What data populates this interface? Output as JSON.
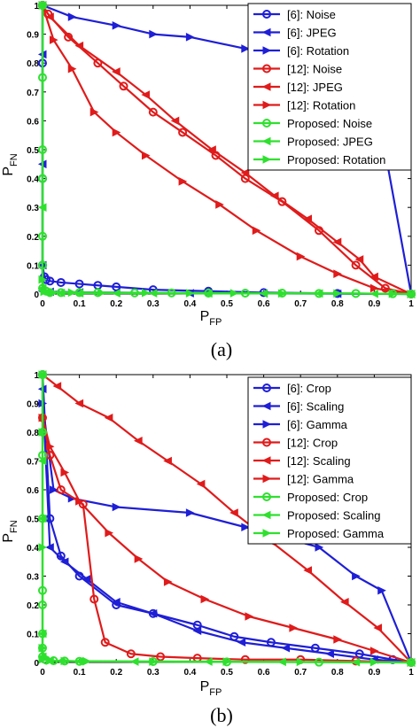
{
  "colors": {
    "ref6": "#1f1fd6",
    "ref12": "#e01b1b",
    "proposed": "#2fe02f",
    "axis": "#000000",
    "background": "#ffffff"
  },
  "chart_data": [
    {
      "type": "line",
      "caption": "(a)",
      "xlabel": "P",
      "xlabel_sub": "FP",
      "ylabel": "P",
      "ylabel_sub": "FN",
      "xlim": [
        0,
        1
      ],
      "ylim": [
        0,
        1
      ],
      "xticks": [
        "0",
        "0.1",
        "0.2",
        "0.3",
        "0.4",
        "0.5",
        "0.6",
        "0.7",
        "0.8",
        "0.9",
        "1"
      ],
      "yticks": [
        "0",
        "0.1",
        "0.2",
        "0.3",
        "0.4",
        "0.5",
        "0.6",
        "0.7",
        "0.8",
        "0.9",
        "1"
      ],
      "grid": false,
      "legend_position": "top-right",
      "series": [
        {
          "name": "[6]: Noise",
          "color": "ref6",
          "marker": "circle",
          "x": [
            0,
            0,
            0,
            0,
            0.005,
            0.01,
            0.02,
            0.05,
            0.1,
            0.15,
            0.2,
            0.3,
            0.45,
            0.6,
            0.8,
            1.0
          ],
          "y": [
            1.0,
            0.8,
            0.4,
            0.1,
            0.06,
            0.05,
            0.045,
            0.04,
            0.035,
            0.03,
            0.025,
            0.015,
            0.01,
            0.005,
            0.002,
            0
          ]
        },
        {
          "name": "[6]: JPEG",
          "color": "ref6",
          "marker": "triangle-left",
          "x": [
            0,
            0,
            0,
            0,
            0,
            0.02,
            0.1,
            0.2,
            0.4,
            0.6,
            0.8,
            1.0
          ],
          "y": [
            1.0,
            0.83,
            0.45,
            0.1,
            0.01,
            0.008,
            0.006,
            0.005,
            0.003,
            0.002,
            0.001,
            0
          ]
        },
        {
          "name": "[6]: Rotation",
          "color": "ref6",
          "marker": "triangle-right",
          "x": [
            0,
            0.08,
            0.2,
            0.3,
            0.4,
            0.55,
            0.7,
            0.85,
            0.9,
            1.0
          ],
          "y": [
            1.0,
            0.96,
            0.93,
            0.9,
            0.89,
            0.85,
            0.8,
            0.75,
            0.7,
            0
          ]
        },
        {
          "name": "[12]: Noise",
          "color": "ref12",
          "marker": "circle",
          "x": [
            0,
            0.015,
            0.07,
            0.15,
            0.22,
            0.3,
            0.38,
            0.47,
            0.55,
            0.65,
            0.75,
            0.85,
            0.93,
            1.0
          ],
          "y": [
            1.0,
            0.97,
            0.89,
            0.8,
            0.72,
            0.63,
            0.56,
            0.48,
            0.4,
            0.32,
            0.22,
            0.1,
            0.02,
            0
          ]
        },
        {
          "name": "[12]: JPEG",
          "color": "ref12",
          "marker": "triangle-left",
          "x": [
            0,
            0.02,
            0.1,
            0.2,
            0.28,
            0.36,
            0.46,
            0.55,
            0.63,
            0.72,
            0.8,
            0.86,
            0.9,
            1.0
          ],
          "y": [
            1.0,
            0.96,
            0.86,
            0.77,
            0.69,
            0.6,
            0.5,
            0.42,
            0.34,
            0.26,
            0.18,
            0.12,
            0.06,
            0
          ]
        },
        {
          "name": "[12]: Rotation",
          "color": "ref12",
          "marker": "triangle-right",
          "x": [
            0,
            0.03,
            0.08,
            0.14,
            0.2,
            0.28,
            0.38,
            0.48,
            0.58,
            0.7,
            0.8,
            0.9,
            1.0
          ],
          "y": [
            1.0,
            0.88,
            0.78,
            0.63,
            0.56,
            0.48,
            0.39,
            0.31,
            0.22,
            0.13,
            0.07,
            0.02,
            0
          ]
        },
        {
          "name": "Proposed: Noise",
          "color": "proposed",
          "marker": "circle",
          "x": [
            0,
            0,
            0,
            0,
            0,
            0,
            0,
            0.01,
            0.02,
            0.05,
            0.1,
            0.15,
            0.25,
            0.35,
            0.45,
            0.55,
            0.65,
            0.75,
            0.85,
            0.95,
            1.0
          ],
          "y": [
            1.0,
            0.75,
            0.5,
            0.4,
            0.2,
            0.1,
            0.02,
            0.01,
            0.005,
            0.005,
            0.005,
            0.005,
            0.004,
            0.004,
            0.003,
            0.003,
            0.003,
            0.002,
            0.002,
            0.001,
            0
          ]
        },
        {
          "name": "Proposed: JPEG",
          "color": "proposed",
          "marker": "triangle-left",
          "x": [
            0,
            0,
            0,
            0.01,
            0.05,
            0.1,
            0.2,
            0.3,
            0.45,
            0.6,
            0.75,
            0.9,
            1.0
          ],
          "y": [
            1.0,
            0.3,
            0.02,
            0.004,
            0.004,
            0.003,
            0.003,
            0.003,
            0.002,
            0.002,
            0.002,
            0.001,
            0
          ]
        },
        {
          "name": "Proposed: Rotation",
          "color": "proposed",
          "marker": "triangle-right",
          "x": [
            0,
            0,
            0.005,
            0.03,
            0.08,
            0.16,
            0.28,
            0.4,
            0.52,
            0.65,
            0.8,
            0.95,
            1.0
          ],
          "y": [
            1.0,
            0.05,
            0.008,
            0.005,
            0.005,
            0.004,
            0.004,
            0.003,
            0.003,
            0.002,
            0.002,
            0.001,
            0
          ]
        }
      ]
    },
    {
      "type": "line",
      "caption": "(b)",
      "xlabel": "P",
      "xlabel_sub": "FP",
      "ylabel": "P",
      "ylabel_sub": "FN",
      "xlim": [
        0,
        1
      ],
      "ylim": [
        0,
        1
      ],
      "xticks": [
        "0",
        "0.1",
        "0.2",
        "0.3",
        "0.4",
        "0.5",
        "0.6",
        "0.7",
        "0.8",
        "0.9",
        "1"
      ],
      "yticks": [
        "0",
        "0.1",
        "0.2",
        "0.3",
        "0.4",
        "0.5",
        "0.6",
        "0.7",
        "0.8",
        "0.9",
        "1"
      ],
      "grid": false,
      "legend_position": "top-right",
      "series": [
        {
          "name": "[6]: Crop",
          "color": "ref6",
          "marker": "circle",
          "x": [
            0,
            0.02,
            0.05,
            0.1,
            0.2,
            0.3,
            0.42,
            0.52,
            0.62,
            0.74,
            0.86,
            0.95,
            1.0
          ],
          "y": [
            1.0,
            0.5,
            0.37,
            0.3,
            0.2,
            0.17,
            0.13,
            0.09,
            0.07,
            0.05,
            0.03,
            0.01,
            0
          ]
        },
        {
          "name": "[6]: Scaling",
          "color": "ref6",
          "marker": "triangle-left",
          "x": [
            0,
            0.02,
            0.06,
            0.12,
            0.2,
            0.3,
            0.42,
            0.54,
            0.66,
            0.78,
            0.9,
            1.0
          ],
          "y": [
            0.95,
            0.4,
            0.35,
            0.29,
            0.21,
            0.17,
            0.11,
            0.07,
            0.05,
            0.03,
            0.01,
            0
          ]
        },
        {
          "name": "[6]: Gamma",
          "color": "ref6",
          "marker": "triangle-right",
          "x": [
            0,
            0.03,
            0.08,
            0.2,
            0.4,
            0.55,
            0.75,
            0.85,
            0.92,
            1.0
          ],
          "y": [
            0.9,
            0.6,
            0.57,
            0.54,
            0.52,
            0.47,
            0.4,
            0.3,
            0.25,
            0
          ]
        },
        {
          "name": "[12]: Crop",
          "color": "ref12",
          "marker": "circle",
          "x": [
            0,
            0.02,
            0.05,
            0.11,
            0.14,
            0.17,
            0.24,
            0.32,
            0.42,
            0.55,
            0.7,
            0.85,
            1.0
          ],
          "y": [
            0.85,
            0.72,
            0.6,
            0.55,
            0.22,
            0.07,
            0.03,
            0.02,
            0.015,
            0.01,
            0.01,
            0.005,
            0
          ]
        },
        {
          "name": "[12]: Scaling",
          "color": "ref12",
          "marker": "triangle-left",
          "x": [
            0,
            0.04,
            0.1,
            0.18,
            0.26,
            0.34,
            0.43,
            0.52,
            0.62,
            0.72,
            0.82,
            0.91,
            1.0
          ],
          "y": [
            1.0,
            0.96,
            0.9,
            0.85,
            0.77,
            0.7,
            0.62,
            0.52,
            0.42,
            0.32,
            0.21,
            0.12,
            0
          ]
        },
        {
          "name": "[12]: Gamma",
          "color": "ref12",
          "marker": "triangle-right",
          "x": [
            0,
            0.02,
            0.06,
            0.1,
            0.18,
            0.26,
            0.34,
            0.44,
            0.56,
            0.68,
            0.8,
            0.9,
            1.0
          ],
          "y": [
            0.85,
            0.75,
            0.66,
            0.56,
            0.45,
            0.36,
            0.28,
            0.22,
            0.16,
            0.12,
            0.08,
            0.04,
            0
          ]
        },
        {
          "name": "Proposed: Crop",
          "color": "proposed",
          "marker": "circle",
          "x": [
            0,
            0,
            0,
            0,
            0,
            0,
            0,
            0,
            0,
            0.01,
            0.03,
            0.06,
            0.1,
            0.3,
            0.5,
            0.75,
            1.0
          ],
          "y": [
            1.0,
            0.8,
            0.72,
            0.5,
            0.25,
            0.2,
            0.1,
            0.05,
            0.02,
            0.008,
            0.006,
            0.005,
            0.004,
            0.003,
            0.002,
            0.001,
            0
          ]
        },
        {
          "name": "Proposed: Scaling",
          "color": "proposed",
          "marker": "triangle-left",
          "x": [
            0,
            0,
            0,
            0,
            0,
            0.02,
            0.05,
            0.1,
            0.25,
            0.45,
            0.65,
            0.85,
            1.0
          ],
          "y": [
            1.0,
            0.7,
            0.5,
            0.1,
            0.02,
            0.006,
            0.005,
            0.004,
            0.003,
            0.003,
            0.002,
            0.001,
            0
          ]
        },
        {
          "name": "Proposed: Gamma",
          "color": "proposed",
          "marker": "triangle-right",
          "x": [
            0,
            0,
            0,
            0,
            0,
            0.02,
            0.06,
            0.12,
            0.3,
            0.5,
            0.7,
            0.9,
            1.0
          ],
          "y": [
            1.0,
            0.8,
            0.4,
            0.05,
            0.01,
            0.006,
            0.005,
            0.004,
            0.003,
            0.003,
            0.002,
            0.001,
            0
          ]
        }
      ]
    }
  ]
}
